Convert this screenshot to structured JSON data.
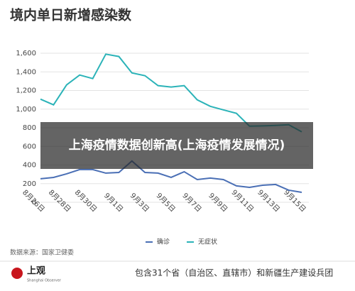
{
  "chart_data": {
    "type": "line",
    "title": "境内单日新增感染数",
    "categories": [
      "8月26日",
      null,
      "8月28日",
      null,
      "8月30日",
      null,
      "9月1日",
      null,
      "9月3日",
      null,
      "9月5日",
      null,
      "9月7日",
      null,
      "9月9日",
      null,
      "9月11日",
      null,
      "9月13日",
      null,
      "9月15日"
    ],
    "series": [
      {
        "name": "确诊",
        "color": "#4a6fb5",
        "values": [
          252,
          267,
          305,
          351,
          351,
          313,
          320,
          443,
          320,
          313,
          267,
          328,
          244,
          260,
          244,
          176,
          160,
          183,
          191,
          130,
          107
        ]
      },
      {
        "name": "无症状",
        "color": "#2bb3b8",
        "values": [
          1107,
          1046,
          1260,
          1366,
          1328,
          1590,
          1565,
          1389,
          1359,
          1252,
          1237,
          1252,
          1100,
          1030,
          992,
          955,
          817,
          820,
          825,
          832,
          756
        ]
      }
    ],
    "ylim": [
      0,
      1600
    ],
    "yticks": [
      0,
      200,
      400,
      600,
      800,
      {
        "value": 1000,
        "label": "1,000"
      },
      {
        "value": 1200,
        "label": "1,200"
      },
      {
        "value": 1400,
        "label": "1,400"
      },
      {
        "value": 1600,
        "label": "1,600"
      }
    ],
    "grid": true,
    "legend": "bottom",
    "source": "数据来源：国家卫健委"
  },
  "overlay": {
    "banner": "上海疫情数据创新高(上海疫情发展情况)"
  },
  "footer": {
    "logo": "上观",
    "logo_sub": "Shanghai Observer",
    "text": "包含31个省（自治区、直辖市）和新疆生产建设兵团"
  }
}
